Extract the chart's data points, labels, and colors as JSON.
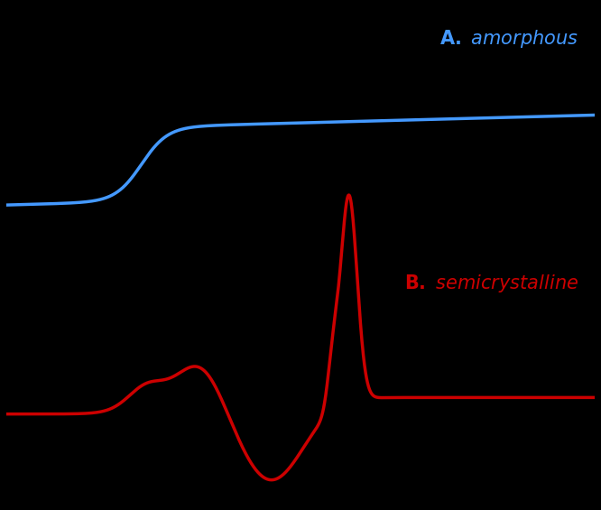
{
  "background_color": "#000000",
  "figure_size": [
    6.66,
    5.65
  ],
  "dpi": 100,
  "label_A_color": "#4499ff",
  "label_B_color": "#cc0000",
  "line_A_color": "#4499ff",
  "line_B_color": "#cc0000",
  "line_width": 2.5
}
